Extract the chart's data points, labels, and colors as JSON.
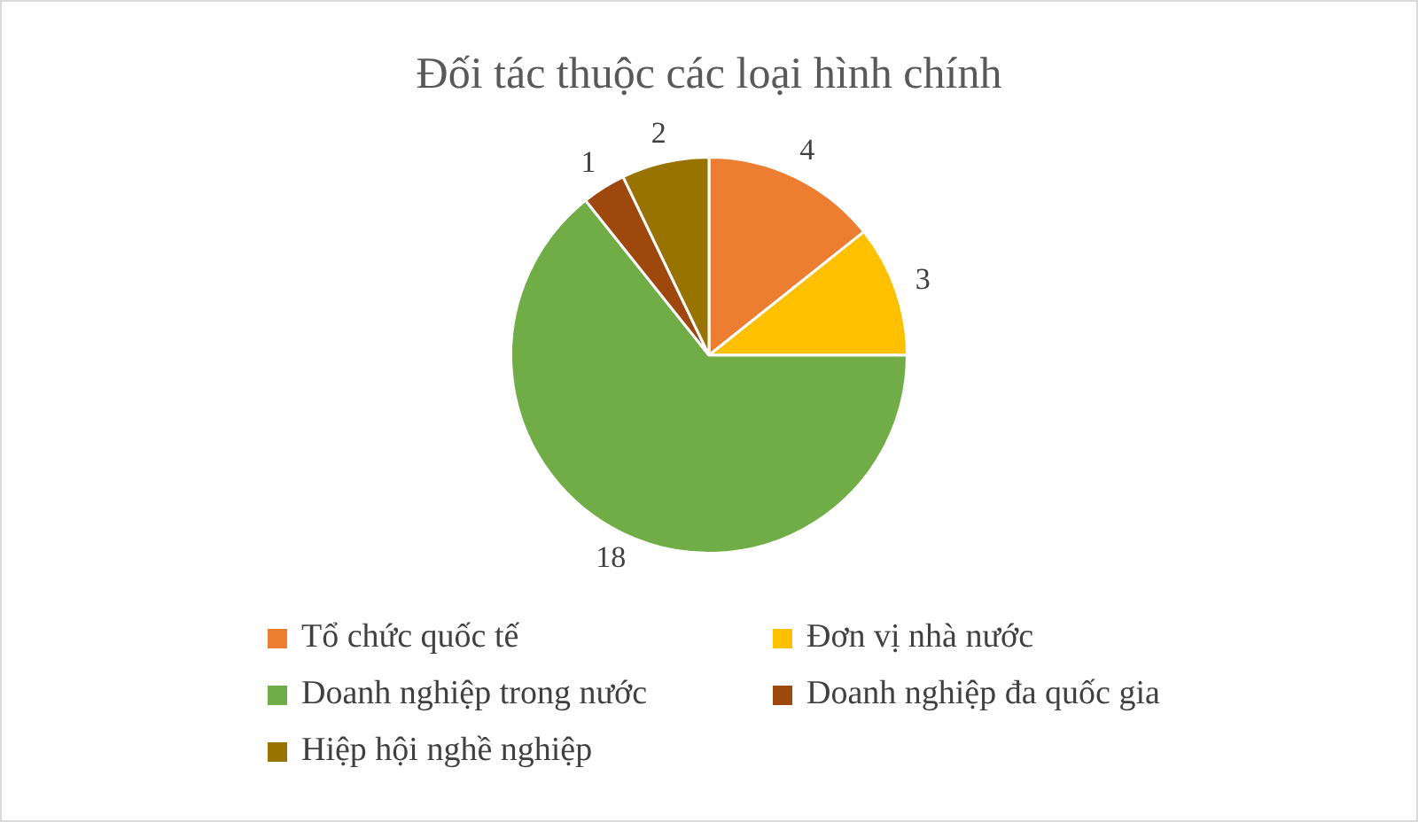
{
  "chart_data": {
    "type": "pie",
    "title": "Đối tác thuộc các loại hình chính",
    "categories": [
      "Tổ chức quốc tế",
      "Đơn vị nhà nước",
      "Doanh nghiệp trong nước",
      "Doanh nghiệp đa quốc gia",
      "Hiệp hội nghề nghiệp"
    ],
    "values": [
      4,
      3,
      18,
      1,
      2
    ],
    "colors": [
      "#ed7d31",
      "#ffc000",
      "#70ad47",
      "#9e480e",
      "#997300"
    ],
    "data_labels": true,
    "legend": "bottom"
  }
}
